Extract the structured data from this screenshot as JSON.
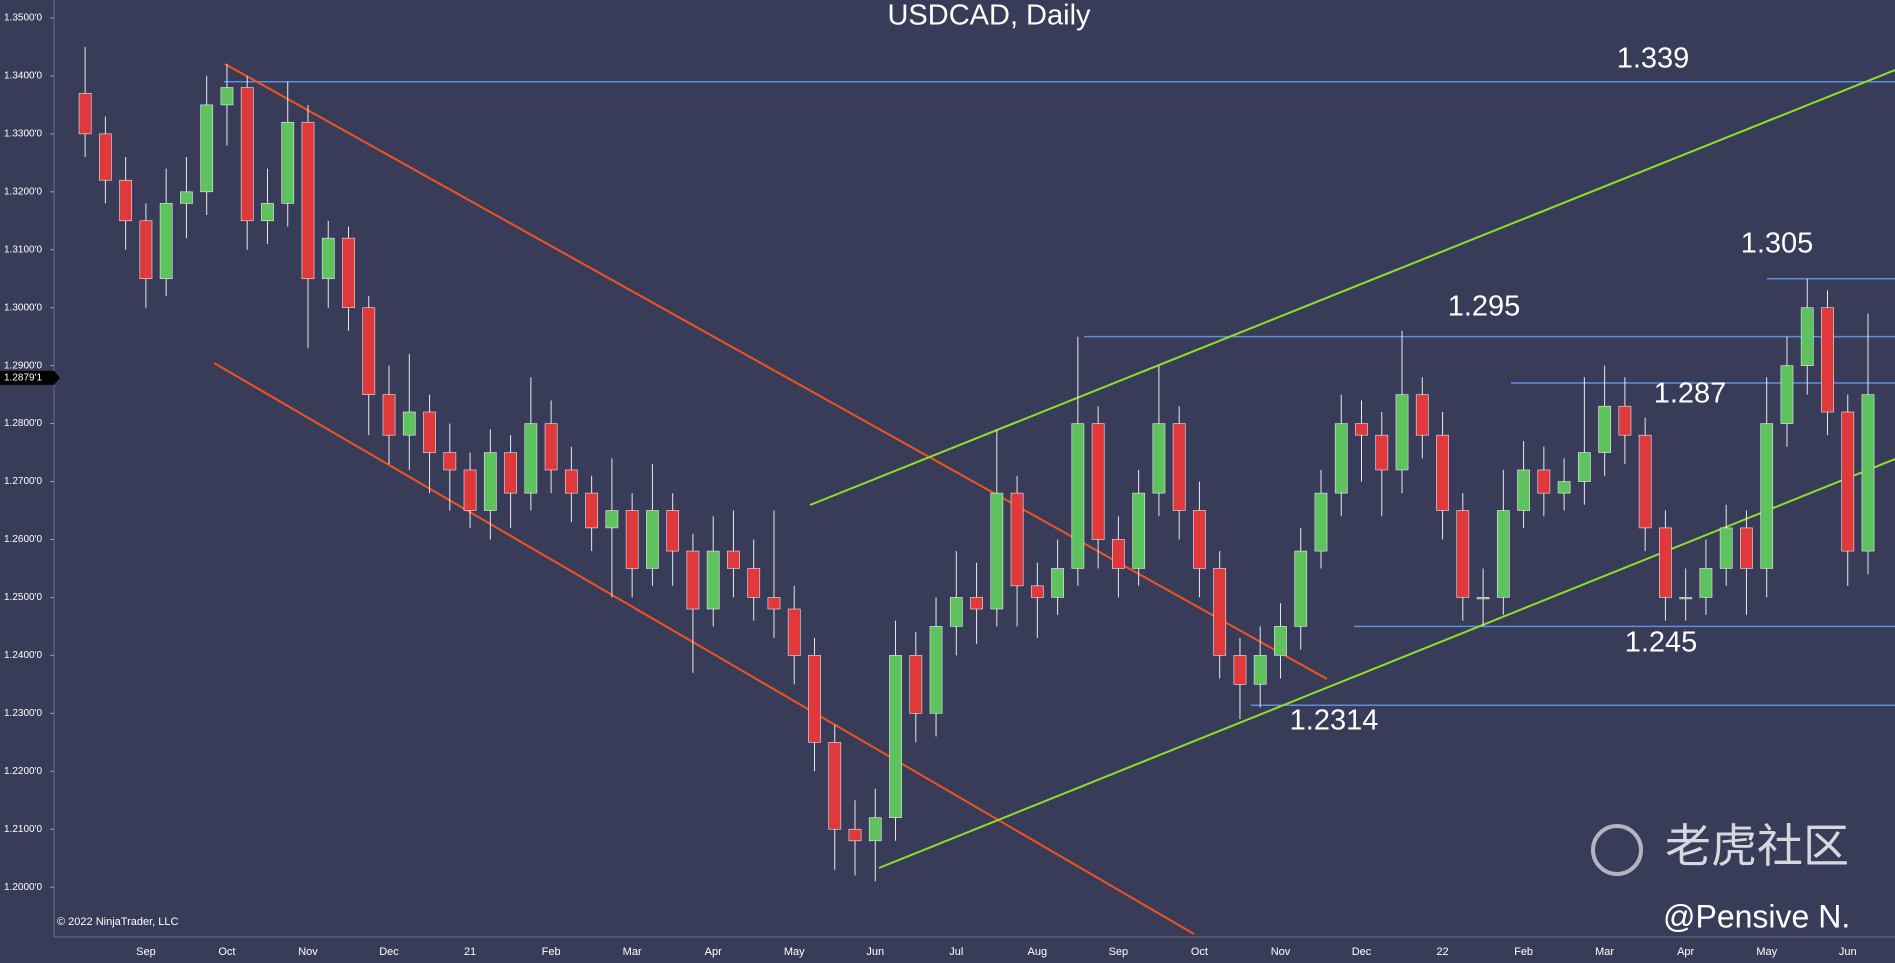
{
  "chart_data": {
    "type": "candlestick",
    "title": "USDCAD, Daily",
    "copyright": "© 2022 NinjaTrader, LLC",
    "watermark": "老虎社区",
    "author": "@Pensive N.",
    "up_color": "#5ec35e",
    "down_color": "#e0393c",
    "level_color": "#5b8fe0",
    "grid": false,
    "categories": [
      null,
      null,
      null,
      "Sep",
      null,
      null,
      null,
      "Oct",
      null,
      null,
      null,
      "Nov",
      null,
      null,
      null,
      "Dec",
      null,
      null,
      null,
      "21",
      null,
      null,
      null,
      "Feb",
      null,
      null,
      null,
      "Mar",
      null,
      null,
      null,
      "Apr",
      null,
      null,
      null,
      "May",
      null,
      null,
      null,
      "Jun",
      null,
      null,
      null,
      "Jul",
      null,
      null,
      null,
      "Aug",
      null,
      null,
      null,
      "Sep",
      null,
      null,
      null,
      "Oct",
      null,
      null,
      null,
      "Nov",
      null,
      null,
      null,
      "Dec",
      null,
      null,
      null,
      "22",
      null,
      null,
      null,
      "Feb",
      null,
      null,
      null,
      "Mar",
      null,
      null,
      null,
      "Apr",
      null,
      null,
      null,
      "May",
      null,
      null,
      null,
      "Jun",
      null
    ],
    "open": [
      1.337,
      1.33,
      1.322,
      1.315,
      1.305,
      1.318,
      1.32,
      1.335,
      1.338,
      1.315,
      1.318,
      1.332,
      1.305,
      1.312,
      1.3,
      1.285,
      1.278,
      1.282,
      1.275,
      1.272,
      1.265,
      1.275,
      1.268,
      1.28,
      1.272,
      1.268,
      1.262,
      1.265,
      1.255,
      1.265,
      1.258,
      1.248,
      1.258,
      1.255,
      1.25,
      1.248,
      1.24,
      1.225,
      1.21,
      1.208,
      1.212,
      1.24,
      1.23,
      1.245,
      1.25,
      1.248,
      1.268,
      1.252,
      1.25,
      1.255,
      1.28,
      1.26,
      1.255,
      1.268,
      1.28,
      1.265,
      1.255,
      1.24,
      1.235,
      1.24,
      1.245,
      1.258,
      1.268,
      1.28,
      1.278,
      1.272,
      1.285,
      1.278,
      1.265,
      1.25,
      1.25,
      1.265,
      1.272,
      1.268,
      1.27,
      1.275,
      1.283,
      1.278,
      1.262,
      1.25,
      1.25,
      1.255,
      1.262,
      1.255,
      1.28,
      1.29,
      1.3,
      1.282,
      1.258
    ],
    "high": [
      1.345,
      1.333,
      1.326,
      1.318,
      1.324,
      1.326,
      1.34,
      1.342,
      1.34,
      1.324,
      1.339,
      1.335,
      1.315,
      1.314,
      1.302,
      1.29,
      1.292,
      1.285,
      1.28,
      1.275,
      1.279,
      1.278,
      1.288,
      1.284,
      1.276,
      1.271,
      1.274,
      1.268,
      1.273,
      1.268,
      1.261,
      1.264,
      1.265,
      1.26,
      1.265,
      1.252,
      1.243,
      1.228,
      1.215,
      1.217,
      1.246,
      1.244,
      1.25,
      1.258,
      1.256,
      1.279,
      1.271,
      1.256,
      1.26,
      1.295,
      1.283,
      1.264,
      1.272,
      1.29,
      1.283,
      1.27,
      1.258,
      1.243,
      1.245,
      1.249,
      1.262,
      1.272,
      1.285,
      1.284,
      1.282,
      1.296,
      1.288,
      1.282,
      1.268,
      1.255,
      1.272,
      1.277,
      1.276,
      1.274,
      1.288,
      1.29,
      1.288,
      1.281,
      1.265,
      1.255,
      1.26,
      1.266,
      1.265,
      1.288,
      1.295,
      1.305,
      1.303,
      1.285,
      1.299
    ],
    "low": [
      1.326,
      1.318,
      1.31,
      1.3,
      1.302,
      1.312,
      1.316,
      1.328,
      1.31,
      1.311,
      1.314,
      1.293,
      1.3,
      1.296,
      1.278,
      1.273,
      1.272,
      1.268,
      1.265,
      1.262,
      1.26,
      1.262,
      1.265,
      1.268,
      1.263,
      1.258,
      1.25,
      1.25,
      1.252,
      1.252,
      1.237,
      1.245,
      1.25,
      1.246,
      1.243,
      1.235,
      1.22,
      1.203,
      1.202,
      1.201,
      1.208,
      1.225,
      1.226,
      1.24,
      1.242,
      1.245,
      1.245,
      1.243,
      1.247,
      1.252,
      1.255,
      1.25,
      1.252,
      1.264,
      1.26,
      1.25,
      1.236,
      1.229,
      1.231,
      1.236,
      1.241,
      1.255,
      1.264,
      1.27,
      1.264,
      1.268,
      1.274,
      1.26,
      1.246,
      1.245,
      1.247,
      1.262,
      1.264,
      1.265,
      1.266,
      1.271,
      1.273,
      1.258,
      1.246,
      1.246,
      1.247,
      1.252,
      1.247,
      1.25,
      1.276,
      1.285,
      1.278,
      1.252,
      1.254
    ],
    "close": [
      1.33,
      1.322,
      1.315,
      1.305,
      1.318,
      1.32,
      1.335,
      1.338,
      1.315,
      1.318,
      1.332,
      1.305,
      1.312,
      1.3,
      1.285,
      1.278,
      1.282,
      1.275,
      1.272,
      1.265,
      1.275,
      1.268,
      1.28,
      1.272,
      1.268,
      1.262,
      1.265,
      1.255,
      1.265,
      1.258,
      1.248,
      1.258,
      1.255,
      1.25,
      1.248,
      1.24,
      1.225,
      1.21,
      1.208,
      1.212,
      1.24,
      1.23,
      1.245,
      1.25,
      1.248,
      1.268,
      1.252,
      1.25,
      1.255,
      1.28,
      1.26,
      1.255,
      1.268,
      1.28,
      1.265,
      1.255,
      1.24,
      1.235,
      1.24,
      1.245,
      1.258,
      1.268,
      1.28,
      1.278,
      1.272,
      1.285,
      1.278,
      1.265,
      1.25,
      1.25,
      1.265,
      1.272,
      1.268,
      1.27,
      1.275,
      1.283,
      1.278,
      1.262,
      1.25,
      1.25,
      1.255,
      1.262,
      1.255,
      1.28,
      1.29,
      1.3,
      1.282,
      1.258,
      1.285
    ],
    "ylim": [
      1.1914,
      1.3531
    ],
    "yticks": [
      {
        "value": 1.2,
        "label": "1.2000'0"
      },
      {
        "value": 1.21,
        "label": "1.2100'0"
      },
      {
        "value": 1.22,
        "label": "1.2200'0"
      },
      {
        "value": 1.23,
        "label": "1.2300'0"
      },
      {
        "value": 1.24,
        "label": "1.2400'0"
      },
      {
        "value": 1.25,
        "label": "1.2500'0"
      },
      {
        "value": 1.26,
        "label": "1.2600'0"
      },
      {
        "value": 1.27,
        "label": "1.2700'0"
      },
      {
        "value": 1.28,
        "label": "1.2800'0"
      },
      {
        "value": 1.29,
        "label": "1.2900'0"
      },
      {
        "value": 1.3,
        "label": "1.3000'0"
      },
      {
        "value": 1.31,
        "label": "1.3100'0"
      },
      {
        "value": 1.32,
        "label": "1.3200'0"
      },
      {
        "value": 1.33,
        "label": "1.3300'0"
      },
      {
        "value": 1.34,
        "label": "1.3400'0"
      },
      {
        "value": 1.35,
        "label": "1.3500'0"
      }
    ],
    "last_price": {
      "value": 1.2879,
      "label": "1.2879'1"
    },
    "levels": [
      1.339,
      1.305,
      1.295,
      1.287,
      1.245,
      1.2314
    ]
  }
}
